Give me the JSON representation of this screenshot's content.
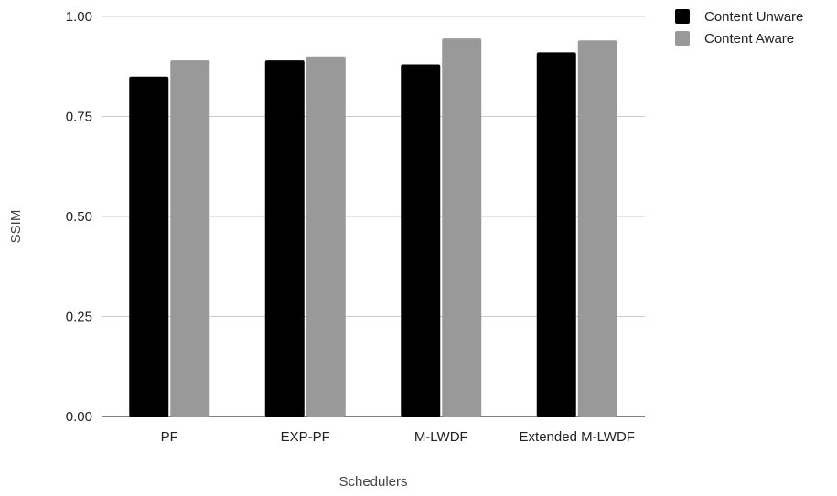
{
  "chart_data": {
    "type": "bar",
    "title": "",
    "xlabel": "Schedulers",
    "ylabel": "SSIM",
    "categories": [
      "PF",
      "EXP-PF",
      "M-LWDF",
      "Extended M-LWDF"
    ],
    "series": [
      {
        "name": "Content Unware",
        "color": "#000000",
        "values": [
          0.85,
          0.89,
          0.88,
          0.91
        ]
      },
      {
        "name": "Content Aware",
        "color": "#999999",
        "values": [
          0.89,
          0.9,
          0.945,
          0.94
        ]
      }
    ],
    "ylim": [
      0,
      1.0
    ],
    "yticks": [
      "0.00",
      "0.25",
      "0.50",
      "0.75",
      "1.00"
    ],
    "grid": true,
    "legend_position": "top-right"
  }
}
